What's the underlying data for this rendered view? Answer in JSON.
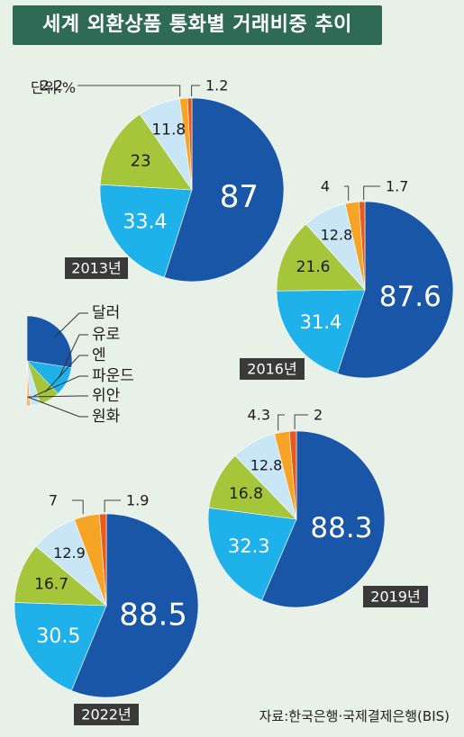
{
  "title": "세계 외환상품 통화별 거래비중 추이",
  "unit": "단위:%",
  "source": "자료:한국은행·국제결제은행(BIS)",
  "colors": {
    "title_bg": "#2e6a56",
    "background": "#e8f1e7",
    "year_label_bg": "#3a3a3a"
  },
  "chart_data": [
    {
      "type": "pie",
      "year_label": "2013년",
      "categories": [
        "달러",
        "유로",
        "엔",
        "파운드",
        "위안",
        "원화"
      ],
      "values": [
        87,
        33.4,
        23,
        11.8,
        2.2,
        1.2
      ],
      "labels": [
        "87",
        "33.4",
        "23",
        "11.8",
        "2.2",
        "1.2"
      ]
    },
    {
      "type": "pie",
      "year_label": "2016년",
      "categories": [
        "달러",
        "유로",
        "엔",
        "파운드",
        "위안",
        "원화"
      ],
      "values": [
        87.6,
        31.4,
        21.6,
        12.8,
        4,
        1.7
      ],
      "labels": [
        "87.6",
        "31.4",
        "21.6",
        "12.8",
        "4",
        "1.7"
      ]
    },
    {
      "type": "pie",
      "year_label": "2019년",
      "categories": [
        "달러",
        "유로",
        "엔",
        "파운드",
        "위안",
        "원화"
      ],
      "values": [
        88.3,
        32.3,
        16.8,
        12.8,
        4.3,
        2
      ],
      "labels": [
        "88.3",
        "32.3",
        "16.8",
        "12.8",
        "4.3",
        "2"
      ]
    },
    {
      "type": "pie",
      "year_label": "2022년",
      "categories": [
        "달러",
        "유로",
        "엔",
        "파운드",
        "위안",
        "원화"
      ],
      "values": [
        88.5,
        30.5,
        16.7,
        12.9,
        7,
        1.9
      ],
      "labels": [
        "88.5",
        "30.5",
        "16.7",
        "12.9",
        "7",
        "1.9"
      ]
    }
  ],
  "legend": {
    "items": [
      "달러",
      "유로",
      "엔",
      "파운드",
      "위안",
      "원화"
    ],
    "colors": [
      "#1a56a8",
      "#1fb1ea",
      "#a5c63b",
      "#c9e6f6",
      "#f5a425",
      "#ea5a1e"
    ]
  }
}
